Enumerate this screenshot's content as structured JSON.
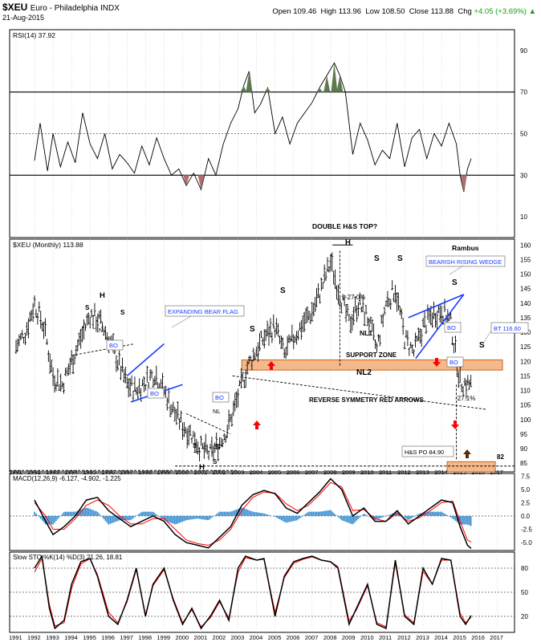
{
  "header": {
    "symbol": "$XEU",
    "name": "Euro - Philadelphia INDX",
    "date": "21-Aug-2015",
    "open_label": "Open",
    "open": "109.46",
    "high_label": "High",
    "high": "113.96",
    "low_label": "Low",
    "low": "108.50",
    "close_label": "Close",
    "close": "113.88",
    "chg_label": "Chg",
    "chg": "+4.05 (+3.69%)",
    "chg_arrow": "▲",
    "chg_color": "#1a9a1a"
  },
  "colors": {
    "price": "#000000",
    "zone_fill": "#f5b88a",
    "zone_stroke": "#c8641a",
    "wedge": "#1a3cff",
    "arrow_red": "#ff0000",
    "arrow_brown": "#5a2b0a",
    "macd_signal": "#ff0000",
    "histogram": "#3b8fd1",
    "rsi_fill_ob": "#5c7a4f",
    "rsi_fill_os": "#b07070",
    "sto_d": "#ff0000",
    "grid": "#bbbbbb"
  },
  "chart_data": [
    {
      "type": "line",
      "panel": "RSI",
      "title": "RSI(14) 37.92",
      "yticks": [
        10,
        30,
        50,
        70,
        90
      ],
      "ylim": [
        0,
        100
      ],
      "reference_lines": [
        30,
        50,
        70
      ],
      "series": [
        {
          "name": "RSI(14)",
          "x": [
            1992.0,
            1992.3,
            1992.7,
            1993.0,
            1993.4,
            1993.8,
            1994.2,
            1994.6,
            1995.0,
            1995.4,
            1995.8,
            1996.2,
            1996.6,
            1997.0,
            1997.4,
            1997.8,
            1998.2,
            1998.6,
            1999.0,
            1999.4,
            1999.8,
            2000.2,
            2000.6,
            2001.0,
            2001.4,
            2001.8,
            2002.2,
            2002.6,
            2003.0,
            2003.3,
            2003.6,
            2003.9,
            2004.2,
            2004.6,
            2005.0,
            2005.4,
            2005.8,
            2006.2,
            2006.6,
            2007.0,
            2007.4,
            2007.8,
            2008.2,
            2008.5,
            2008.8,
            2009.2,
            2009.6,
            2010.0,
            2010.4,
            2010.8,
            2011.2,
            2011.6,
            2012.0,
            2012.4,
            2012.8,
            2013.2,
            2013.6,
            2014.0,
            2014.4,
            2014.8,
            2015.0,
            2015.2,
            2015.4,
            2015.6
          ],
          "values": [
            37,
            55,
            32,
            50,
            34,
            46,
            36,
            60,
            45,
            38,
            50,
            33,
            40,
            36,
            31,
            44,
            35,
            48,
            38,
            30,
            33,
            25,
            31,
            23,
            38,
            30,
            45,
            55,
            62,
            73,
            80,
            60,
            64,
            72,
            50,
            58,
            45,
            55,
            60,
            65,
            72,
            78,
            84,
            78,
            70,
            40,
            55,
            47,
            35,
            42,
            38,
            55,
            34,
            48,
            52,
            38,
            50,
            44,
            55,
            45,
            30,
            22,
            33,
            38
          ]
        }
      ]
    },
    {
      "type": "ohlc",
      "panel": "Price",
      "title": "$XEU (Monthly) 113.88",
      "x_ticks": [
        "1991",
        "1992",
        "1993",
        "1994",
        "1995",
        "1996",
        "1997",
        "1998",
        "1999",
        "2000",
        "2001",
        "2002",
        "2003",
        "2004",
        "2005",
        "2006",
        "2007",
        "2008",
        "2009",
        "2010",
        "2011",
        "2012",
        "2013",
        "2014",
        "2015",
        "2016",
        "2017"
      ],
      "yticks": [
        85,
        90,
        95,
        100,
        105,
        110,
        115,
        120,
        125,
        130,
        135,
        140,
        145,
        150,
        155,
        160
      ],
      "ylim": [
        82,
        162
      ],
      "series": [
        {
          "name": "$XEU",
          "x": [
            1991.0,
            1991.5,
            1992.0,
            1992.5,
            1993.0,
            1993.5,
            1994.0,
            1994.5,
            1995.0,
            1995.5,
            1996.0,
            1996.5,
            1997.0,
            1997.5,
            1998.0,
            1998.5,
            1999.0,
            1999.5,
            2000.0,
            2000.5,
            2001.0,
            2001.5,
            2002.0,
            2002.5,
            2003.0,
            2003.5,
            2004.0,
            2004.5,
            2005.0,
            2005.5,
            2006.0,
            2006.5,
            2007.0,
            2007.5,
            2008.0,
            2008.5,
            2009.0,
            2009.5,
            2010.0,
            2010.5,
            2011.0,
            2011.5,
            2012.0,
            2012.5,
            2013.0,
            2013.5,
            2014.0,
            2014.5,
            2015.0,
            2015.5
          ],
          "values": [
            125,
            130,
            140,
            132,
            115,
            112,
            120,
            128,
            136,
            134,
            128,
            120,
            112,
            110,
            113,
            116,
            110,
            103,
            98,
            95,
            90,
            88,
            92,
            98,
            108,
            118,
            124,
            129,
            132,
            122,
            128,
            133,
            137,
            145,
            154,
            143,
            133,
            140,
            135,
            124,
            140,
            145,
            128,
            123,
            132,
            136,
            138,
            133,
            113,
            112
          ]
        }
      ],
      "annotations": [
        "DOUBLE H&S TOP?",
        "Rambus",
        "BEARISH RISING WEDGE",
        "EXPANDING BEAR FLAG",
        "SUPPORT ZONE",
        "NL1",
        "NL2",
        "NL",
        "NL",
        "REVERSE SYMMETRY RED ARROWS",
        "-27.0%",
        "-27.1%",
        "H&S PO 84.90",
        "BT 116.60",
        "BO",
        "82",
        "H",
        "S"
      ]
    },
    {
      "type": "line",
      "panel": "MACD",
      "title": "MACD(12,26,9) -6.127, -4.902, -1.225",
      "yticks": [
        "7.5",
        "5.0",
        "2.5",
        "0.0",
        "-2.5",
        "-5.0"
      ],
      "ylim": [
        -6.5,
        8
      ],
      "series": [
        {
          "name": "MACD",
          "x": [
            1992.0,
            1992.6,
            1993.0,
            1993.6,
            1994.2,
            1994.8,
            1995.4,
            1996.0,
            1996.6,
            1997.2,
            1997.8,
            1998.4,
            1999.0,
            1999.6,
            2000.2,
            2000.8,
            2001.4,
            2002.0,
            2002.6,
            2003.2,
            2003.8,
            2004.4,
            2005.0,
            2005.6,
            2006.2,
            2006.8,
            2007.4,
            2008.0,
            2008.6,
            2009.2,
            2009.8,
            2010.4,
            2011.0,
            2011.6,
            2012.2,
            2012.8,
            2013.4,
            2014.0,
            2014.6,
            2015.0,
            2015.4,
            2015.6
          ],
          "values": [
            3,
            -1,
            -3.5,
            -2,
            0,
            3,
            3.5,
            1,
            -0.5,
            -2,
            -1,
            0,
            -1,
            -3.5,
            -5,
            -5.5,
            -6,
            -4,
            -2,
            2,
            4,
            4.8,
            4.2,
            1.5,
            0.5,
            2.5,
            4.5,
            7,
            5,
            0,
            1.5,
            -1,
            -1,
            1,
            -1.5,
            0,
            1.5,
            3,
            2.5,
            -2,
            -5.5,
            -6.1
          ]
        },
        {
          "name": "Signal",
          "x": [
            1992.0,
            1992.6,
            1993.0,
            1993.6,
            1994.2,
            1994.8,
            1995.4,
            1996.0,
            1996.6,
            1997.2,
            1997.8,
            1998.4,
            1999.0,
            1999.6,
            2000.2,
            2000.8,
            2001.4,
            2002.0,
            2002.6,
            2003.2,
            2003.8,
            2004.4,
            2005.0,
            2005.6,
            2006.2,
            2006.8,
            2007.4,
            2008.0,
            2008.6,
            2009.2,
            2009.8,
            2010.4,
            2011.0,
            2011.6,
            2012.2,
            2012.8,
            2013.4,
            2014.0,
            2014.6,
            2015.0,
            2015.4,
            2015.6
          ],
          "values": [
            2.5,
            0,
            -2.5,
            -2.5,
            -0.5,
            2,
            3,
            2,
            0,
            -1.5,
            -1.5,
            -0.5,
            -0.5,
            -2.5,
            -4.5,
            -5.2,
            -5.5,
            -4.5,
            -2.5,
            1,
            3.5,
            4.5,
            4.3,
            2.3,
            1,
            2,
            4,
            6.3,
            5.5,
            1,
            1.2,
            -0.5,
            -1,
            0.5,
            -1,
            -0.3,
            1,
            2.5,
            2.8,
            -1,
            -4.5,
            -4.9
          ]
        }
      ]
    },
    {
      "type": "line",
      "panel": "Slow STO",
      "title": "Slow STO %K(14) %D(3) 21.26, 18.81",
      "yticks": [
        20,
        50,
        80
      ],
      "ylim": [
        0,
        100
      ],
      "series": [
        {
          "name": "%K",
          "x": [
            1992.0,
            1992.4,
            1992.8,
            1993.1,
            1993.6,
            1994.0,
            1994.5,
            1995.0,
            1995.4,
            1996.0,
            1996.5,
            1997.0,
            1997.5,
            1998.0,
            1998.4,
            1999.0,
            1999.5,
            2000.0,
            2000.5,
            2001.0,
            2001.5,
            2002.0,
            2002.5,
            2003.0,
            2003.4,
            2004.0,
            2004.4,
            2005.0,
            2005.5,
            2006.0,
            2006.5,
            2007.0,
            2007.5,
            2008.0,
            2008.4,
            2009.0,
            2009.4,
            2010.0,
            2010.5,
            2011.0,
            2011.5,
            2012.0,
            2012.5,
            2013.0,
            2013.5,
            2014.0,
            2014.5,
            2015.0,
            2015.3,
            2015.6
          ],
          "values": [
            80,
            95,
            30,
            5,
            15,
            60,
            88,
            92,
            70,
            20,
            10,
            40,
            80,
            20,
            60,
            80,
            40,
            10,
            30,
            5,
            20,
            40,
            15,
            80,
            95,
            90,
            92,
            20,
            70,
            88,
            92,
            95,
            90,
            88,
            80,
            10,
            30,
            60,
            10,
            5,
            90,
            20,
            10,
            80,
            60,
            92,
            90,
            20,
            10,
            21
          ]
        },
        {
          "name": "%D",
          "x": [
            1992.0,
            1992.4,
            1992.8,
            1993.1,
            1993.6,
            1994.0,
            1994.5,
            1995.0,
            1995.4,
            1996.0,
            1996.5,
            1997.0,
            1997.5,
            1998.0,
            1998.4,
            1999.0,
            1999.5,
            2000.0,
            2000.5,
            2001.0,
            2001.5,
            2002.0,
            2002.5,
            2003.0,
            2003.4,
            2004.0,
            2004.4,
            2005.0,
            2005.5,
            2006.0,
            2006.5,
            2007.0,
            2007.5,
            2008.0,
            2008.4,
            2009.0,
            2009.4,
            2010.0,
            2010.5,
            2011.0,
            2011.5,
            2012.0,
            2012.5,
            2013.0,
            2013.5,
            2014.0,
            2014.5,
            2015.0,
            2015.3,
            2015.6
          ],
          "values": [
            75,
            92,
            35,
            8,
            12,
            55,
            85,
            92,
            72,
            25,
            12,
            38,
            78,
            22,
            58,
            78,
            42,
            12,
            28,
            7,
            18,
            38,
            18,
            75,
            93,
            90,
            91,
            25,
            68,
            86,
            91,
            94,
            90,
            88,
            82,
            14,
            28,
            58,
            12,
            7,
            86,
            22,
            12,
            76,
            60,
            90,
            90,
            24,
            12,
            18.8
          ]
        }
      ]
    }
  ]
}
